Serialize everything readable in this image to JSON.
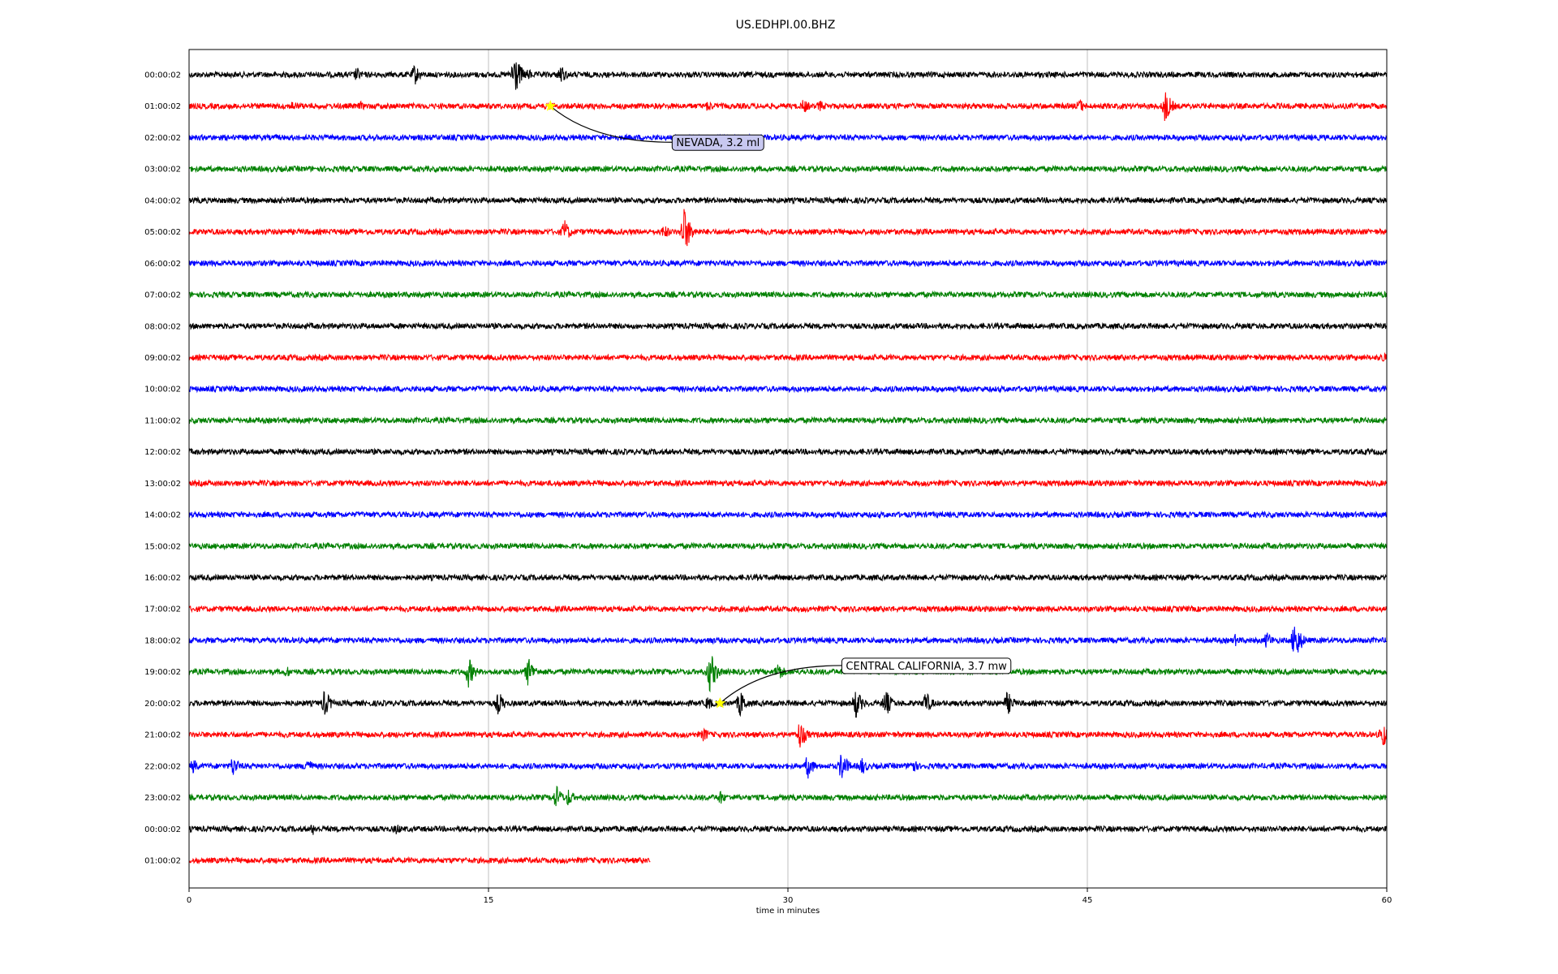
{
  "chart_data": {
    "type": "line",
    "title": "US.EDHPI.00.BHZ",
    "xlabel": "time in minutes",
    "ylabel": "",
    "xlim": [
      0,
      60
    ],
    "xticks": [
      0,
      15,
      30,
      45,
      60
    ],
    "xtick_labels": [
      "0",
      "15",
      "30",
      "45",
      "60"
    ],
    "grid": "vertical lines at x ticks",
    "trace_colors": [
      "#000000",
      "#ff0000",
      "#0000ff",
      "#008000"
    ],
    "marker_color": "#ffff00",
    "rows": [
      {
        "label": "00:00:02",
        "end": 60,
        "bursts": [
          {
            "t": 8.4,
            "a": 10
          },
          {
            "t": 11.3,
            "a": 14
          },
          {
            "t": 16.3,
            "a": 30
          },
          {
            "t": 17.0,
            "a": 8
          },
          {
            "t": 18.6,
            "a": 14
          }
        ]
      },
      {
        "label": "01:00:02",
        "end": 60,
        "bursts": [
          {
            "t": 5.2,
            "a": 8
          },
          {
            "t": 8.6,
            "a": 6
          },
          {
            "t": 26.0,
            "a": 8
          },
          {
            "t": 30.8,
            "a": 10
          },
          {
            "t": 31.6,
            "a": 8
          },
          {
            "t": 44.6,
            "a": 10
          },
          {
            "t": 48.9,
            "a": 22
          }
        ]
      },
      {
        "label": "02:00:02",
        "end": 60,
        "bursts": []
      },
      {
        "label": "03:00:02",
        "end": 60,
        "bursts": []
      },
      {
        "label": "04:00:02",
        "end": 60,
        "bursts": []
      },
      {
        "label": "05:00:02",
        "end": 60,
        "bursts": [
          {
            "t": 18.8,
            "a": 16
          },
          {
            "t": 23.8,
            "a": 10
          },
          {
            "t": 24.8,
            "a": 32
          }
        ]
      },
      {
        "label": "06:00:02",
        "end": 60,
        "bursts": []
      },
      {
        "label": "07:00:02",
        "end": 60,
        "bursts": []
      },
      {
        "label": "08:00:02",
        "end": 60,
        "bursts": []
      },
      {
        "label": "09:00:02",
        "end": 60,
        "bursts": [
          {
            "t": 59.8,
            "a": 8
          }
        ]
      },
      {
        "label": "10:00:02",
        "end": 60,
        "bursts": []
      },
      {
        "label": "11:00:02",
        "end": 60,
        "bursts": []
      },
      {
        "label": "12:00:02",
        "end": 60,
        "bursts": []
      },
      {
        "label": "13:00:02",
        "end": 60,
        "bursts": []
      },
      {
        "label": "14:00:02",
        "end": 60,
        "bursts": []
      },
      {
        "label": "15:00:02",
        "end": 60,
        "bursts": []
      },
      {
        "label": "16:00:02",
        "end": 60,
        "bursts": []
      },
      {
        "label": "17:00:02",
        "end": 60,
        "bursts": []
      },
      {
        "label": "18:00:02",
        "end": 60,
        "bursts": [
          {
            "t": 26.1,
            "a": 6
          },
          {
            "t": 52.4,
            "a": 8
          },
          {
            "t": 54.0,
            "a": 12
          },
          {
            "t": 55.4,
            "a": 28
          }
        ]
      },
      {
        "label": "19:00:02",
        "end": 60,
        "bursts": [
          {
            "t": 4.9,
            "a": 8
          },
          {
            "t": 14.0,
            "a": 20
          },
          {
            "t": 17.0,
            "a": 20
          },
          {
            "t": 26.1,
            "a": 28
          },
          {
            "t": 29.5,
            "a": 14
          }
        ]
      },
      {
        "label": "20:00:02",
        "end": 60,
        "bursts": [
          {
            "t": 6.8,
            "a": 18
          },
          {
            "t": 15.5,
            "a": 16
          },
          {
            "t": 26.0,
            "a": 10
          },
          {
            "t": 27.6,
            "a": 18
          },
          {
            "t": 33.4,
            "a": 20
          },
          {
            "t": 34.9,
            "a": 18
          },
          {
            "t": 36.9,
            "a": 16
          },
          {
            "t": 41.0,
            "a": 16
          }
        ]
      },
      {
        "label": "21:00:02",
        "end": 60,
        "bursts": [
          {
            "t": 25.8,
            "a": 10
          },
          {
            "t": 30.6,
            "a": 20
          },
          {
            "t": 59.8,
            "a": 18
          }
        ]
      },
      {
        "label": "22:00:02",
        "end": 60,
        "bursts": [
          {
            "t": 0.2,
            "a": 10
          },
          {
            "t": 2.2,
            "a": 14
          },
          {
            "t": 5.9,
            "a": 12
          },
          {
            "t": 31.0,
            "a": 16
          },
          {
            "t": 32.7,
            "a": 20
          },
          {
            "t": 33.7,
            "a": 12
          },
          {
            "t": 36.2,
            "a": 12
          }
        ]
      },
      {
        "label": "23:00:02",
        "end": 60,
        "bursts": [
          {
            "t": 18.4,
            "a": 16
          },
          {
            "t": 19.0,
            "a": 12
          },
          {
            "t": 26.6,
            "a": 10
          }
        ]
      },
      {
        "label": "00:00:02",
        "end": 60,
        "bursts": [
          {
            "t": 6.2,
            "a": 8
          },
          {
            "t": 10.4,
            "a": 8
          }
        ]
      },
      {
        "label": "01:00:02",
        "end": 23.1,
        "bursts": []
      }
    ],
    "events": [
      {
        "label": "NEVADA, 3.2 ml",
        "row": 1,
        "t": 18.1,
        "label_t": 24.2,
        "label_row": 2.15,
        "box_color": "#c8c8f0"
      },
      {
        "label": "CENTRAL CALIFORNIA, 3.7 mw",
        "row": 20,
        "t": 26.6,
        "label_t": 32.7,
        "label_row": 18.8,
        "box_color": "#ffffff"
      }
    ]
  }
}
